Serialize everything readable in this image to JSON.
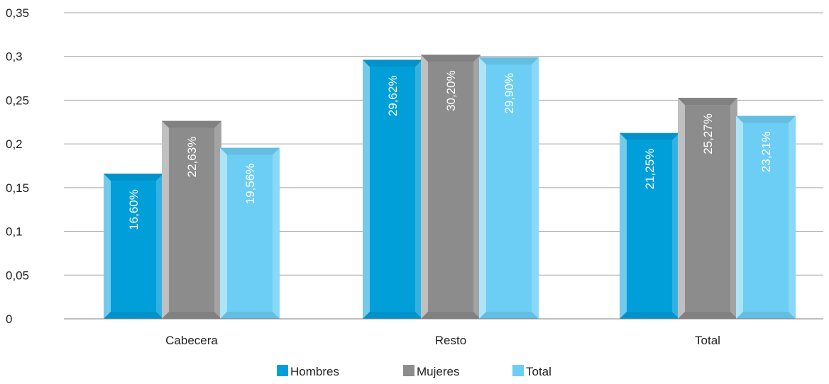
{
  "chart_data": {
    "type": "bar",
    "categories": [
      "Cabecera",
      "Resto",
      "Total"
    ],
    "series": [
      {
        "name": "Hombres",
        "values": [
          0.166,
          0.2962,
          0.2125
        ],
        "labels": [
          "16,60%",
          "29,62%",
          "21,25%"
        ],
        "color": "#009fda"
      },
      {
        "name": "Mujeres",
        "values": [
          0.2263,
          0.302,
          0.2527
        ],
        "labels": [
          "22,63%",
          "30,20%",
          "25,27%"
        ],
        "color": "#8c8c8c"
      },
      {
        "name": "Total",
        "values": [
          0.1956,
          0.299,
          0.2321
        ],
        "labels": [
          "19,56%",
          "29,90%",
          "23,21%"
        ],
        "color": "#6ccef5"
      }
    ],
    "ylim": [
      0,
      0.35
    ],
    "yticks": [
      0,
      0.05,
      0.1,
      0.15,
      0.2,
      0.25,
      0.3,
      0.35
    ],
    "ytick_labels": [
      "0",
      "0,05",
      "0,1",
      "0,15",
      "0,2",
      "0,25",
      "0,3",
      "0,35"
    ],
    "grid": true,
    "legend_position": "bottom",
    "title": "",
    "xlabel": "",
    "ylabel": ""
  }
}
